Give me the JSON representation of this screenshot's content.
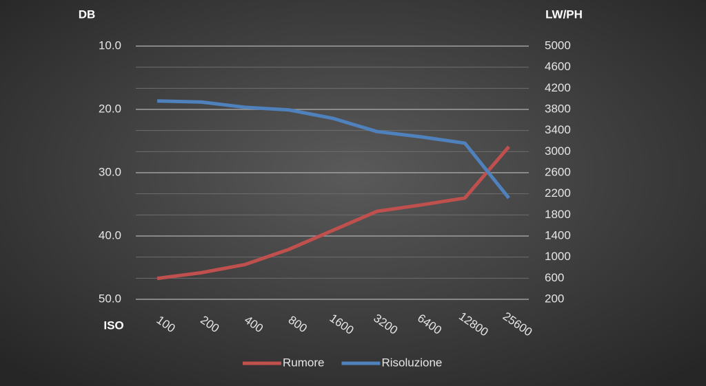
{
  "chart_data": {
    "type": "line",
    "y_title": "DB",
    "y2_title": "LW/PH",
    "x_title": "ISO",
    "categories": [
      "100",
      "200",
      "400",
      "800",
      "1600",
      "3200",
      "6400",
      "12800",
      "25600"
    ],
    "series": [
      {
        "name": "Rumore",
        "color": "#c0504d",
        "values": [
          46.7,
          45.8,
          44.5,
          42.1,
          39.1,
          36.1,
          35.1,
          34.0,
          25.9
        ]
      },
      {
        "name": "Risoluzione",
        "color": "#4f81bd",
        "axis": "y2",
        "values": [
          3960,
          3940,
          3840,
          3790,
          3630,
          3380,
          3280,
          3160,
          2120
        ]
      }
    ],
    "ylim": [
      10,
      50
    ],
    "y_inverted": true,
    "yticks": [
      {
        "value": 10,
        "label": "10.0"
      },
      {
        "value": 20,
        "label": "20.0"
      },
      {
        "value": 30,
        "label": "30.0"
      },
      {
        "value": 40,
        "label": "40.0"
      },
      {
        "value": 50,
        "label": "50.0"
      }
    ],
    "y2lim": [
      200,
      5000
    ],
    "y2ticks": [
      200,
      600,
      1000,
      1400,
      1800,
      2200,
      2600,
      3000,
      3400,
      3800,
      4200,
      4600,
      5000
    ],
    "grid": true,
    "legend": "bottom"
  }
}
